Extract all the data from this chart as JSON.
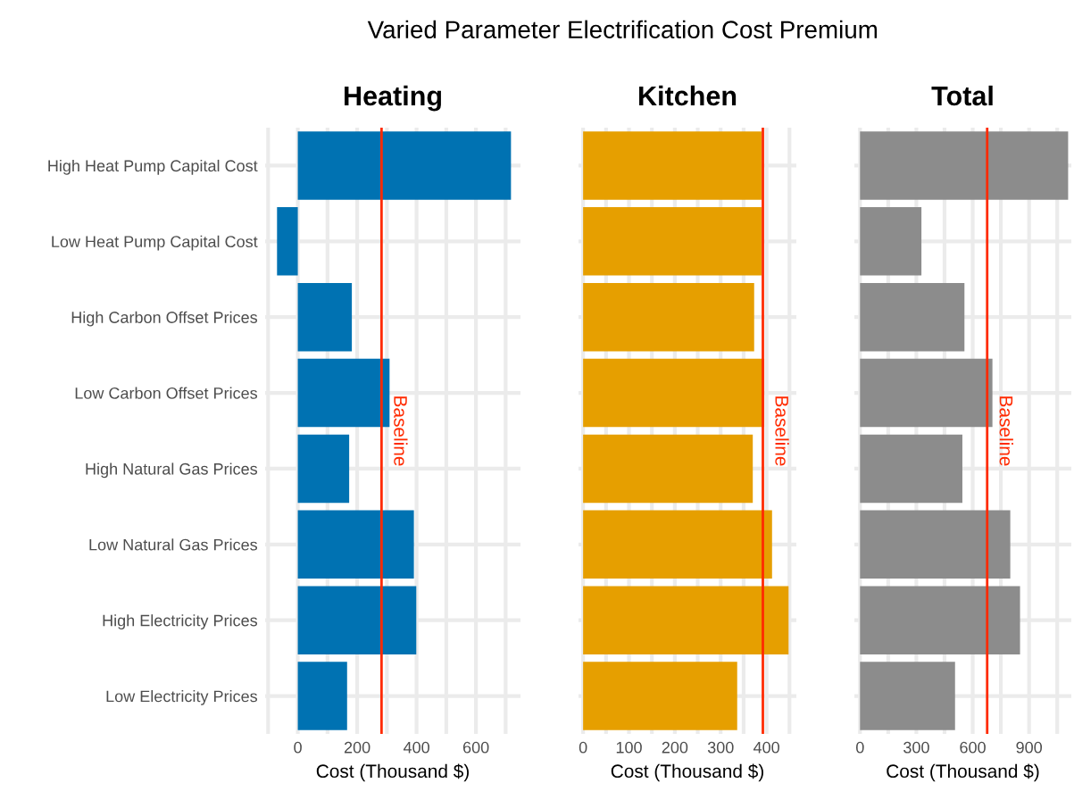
{
  "chart_data": [
    {
      "type": "bar",
      "orientation": "horizontal",
      "title": "Heating",
      "xlabel": "Cost (Thousand $)",
      "annotations": [
        "Varied Parameter Electrification Cost Premium"
      ],
      "categories": [
        "High Heat Pump Capital Cost",
        "Low Heat Pump Capital Cost",
        "High Carbon Offset Prices",
        "Low Carbon Offset Prices",
        "High Natural Gas Prices",
        "Low Natural Gas Prices",
        "High Electricity Prices",
        "Low Electricity Prices"
      ],
      "series": [
        {
          "color": "#0072b2",
          "values": [
            718,
            -70,
            182,
            309,
            173,
            391,
            399,
            166
          ]
        }
      ],
      "xlim": [
        -110,
        750
      ],
      "xticks": [
        {
          "value": -100,
          "label": null
        },
        0,
        {
          "value": 100,
          "label": null
        },
        200,
        {
          "value": 300,
          "label": null
        },
        400,
        {
          "value": 500,
          "label": null
        },
        600,
        {
          "value": 700,
          "label": null
        }
      ],
      "ref_lines": [
        {
          "axis": "x",
          "value": 282,
          "label": "Baseline",
          "color": "#ff2a00"
        }
      ],
      "grid": true,
      "legend": false
    },
    {
      "type": "bar",
      "orientation": "horizontal",
      "title": "Kitchen",
      "xlabel": "Cost (Thousand $)",
      "categories": [
        null,
        null,
        null,
        null,
        null,
        null,
        null,
        null
      ],
      "series": [
        {
          "color": "#e69f00",
          "values": [
            389,
            389,
            373,
            395,
            370,
            412,
            448,
            336
          ]
        }
      ],
      "xlim": [
        -10,
        465
      ],
      "xticks": [
        0,
        {
          "value": 50,
          "label": null
        },
        100,
        {
          "value": 150,
          "label": null
        },
        200,
        {
          "value": 250,
          "label": null
        },
        300,
        {
          "value": 350,
          "label": null
        },
        400,
        {
          "value": 450,
          "label": null
        }
      ],
      "ref_lines": [
        {
          "axis": "x",
          "value": 392,
          "label": "Baseline",
          "color": "#ff2a00"
        }
      ],
      "grid": true,
      "legend": false,
      "tick_labels": "x"
    },
    {
      "type": "bar",
      "orientation": "horizontal",
      "title": "Total",
      "xlabel": "Cost (Thousand $)",
      "categories": [
        null,
        null,
        null,
        null,
        null,
        null,
        null,
        null
      ],
      "series": [
        {
          "color": "#8c8c8c",
          "values": [
            1108,
            327,
            556,
            705,
            545,
            800,
            852,
            506
          ]
        }
      ],
      "xlim": [
        -30,
        1125
      ],
      "xticks": [
        0,
        {
          "value": 150,
          "label": null
        },
        300,
        {
          "value": 450,
          "label": null
        },
        600,
        {
          "value": 750,
          "label": null
        },
        900,
        {
          "value": 1050,
          "label": null
        }
      ],
      "ref_lines": [
        {
          "axis": "x",
          "value": 677,
          "label": "Baseline",
          "color": "#ff2a00"
        }
      ],
      "grid": true,
      "legend": false,
      "tick_labels": "x"
    }
  ]
}
